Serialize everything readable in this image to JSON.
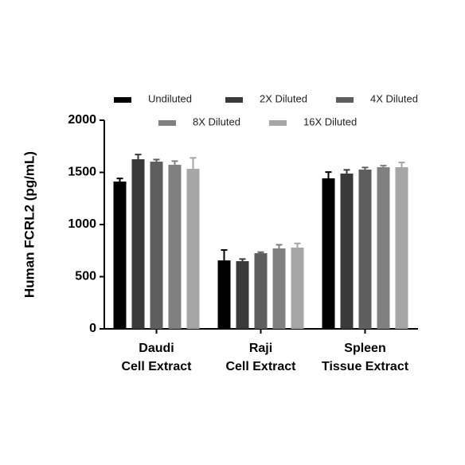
{
  "chart_data": {
    "type": "bar",
    "y_label": "Human FCRL2 (pg/mL)",
    "categories": [
      [
        "Daudi",
        "Cell Extract"
      ],
      [
        "Raji",
        "Cell Extract"
      ],
      [
        "Spleen",
        "Tissue Extract"
      ]
    ],
    "series": [
      {
        "name": "Undiluted",
        "color": "#000000",
        "values": [
          1412,
          656,
          1443
        ],
        "errors": [
          30,
          100,
          60
        ]
      },
      {
        "name": "2X Diluted",
        "color": "#3a3a3a",
        "values": [
          1626,
          649,
          1489
        ],
        "errors": [
          45,
          20,
          35
        ]
      },
      {
        "name": "4X Diluted",
        "color": "#5e5e5e",
        "values": [
          1603,
          725,
          1527
        ],
        "errors": [
          20,
          10,
          20
        ]
      },
      {
        "name": "8X Diluted",
        "color": "#808080",
        "values": [
          1573,
          771,
          1550
        ],
        "errors": [
          35,
          35,
          15
        ]
      },
      {
        "name": "16X Diluted",
        "color": "#a6a6a6",
        "values": [
          1534,
          779,
          1550
        ],
        "errors": [
          105,
          40,
          45
        ]
      }
    ],
    "ylim": [
      0,
      2000
    ],
    "yticks": [
      0,
      500,
      1000,
      1500,
      2000
    ]
  }
}
